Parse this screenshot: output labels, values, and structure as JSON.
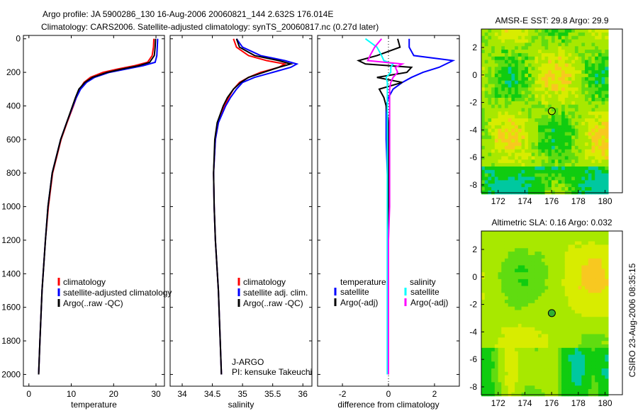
{
  "title_line1": "Argo profile: JA 5900286_130 16-Aug-2006 20060821_144 2.632S 176.014E",
  "title_line2": "Climatology: CARS2006. Satellite-adjusted climatology: synTS_20060817.nc (0.27d later)",
  "side_label": "CSIRO 23-Aug-2006 08:35:15",
  "colors": {
    "climatology": "#ff0000",
    "satellite": "#0000ff",
    "argo": "#000000",
    "sal_satellite": "#00ffff",
    "sal_argo": "#ff00ff"
  },
  "chart_data": [
    {
      "type": "line",
      "xlabel": "temperature",
      "xlim": [
        -1.3,
        32
      ],
      "ylim": [
        2070,
        -20
      ],
      "xticks": [
        0,
        10,
        20,
        30
      ],
      "yticks": [
        0,
        200,
        400,
        600,
        800,
        1000,
        1200,
        1400,
        1600,
        1800,
        2000
      ],
      "legend": [
        "climatology",
        "satellite-adjusted climatology",
        "Argo(..raw -QC)"
      ],
      "legend_placement": "lower-left",
      "depth": [
        0,
        50,
        100,
        140,
        160,
        180,
        200,
        230,
        260,
        300,
        350,
        400,
        500,
        600,
        800,
        1000,
        1200,
        1500,
        1800,
        2000
      ],
      "series": [
        {
          "name": "climatology",
          "color": "#ff0000",
          "values": [
            29.5,
            29.4,
            29.1,
            28.0,
            25,
            21,
            17.5,
            14.5,
            13,
            12,
            11.2,
            10.5,
            9,
            7.6,
            5.6,
            4.6,
            3.9,
            3.1,
            2.6,
            2.3
          ]
        },
        {
          "name": "satellite-adjusted climatology",
          "color": "#0000ff",
          "values": [
            30.4,
            30.3,
            30.2,
            29.8,
            27,
            23,
            19,
            15.5,
            13.6,
            12.2,
            11.2,
            10.4,
            8.9,
            7.5,
            5.5,
            4.5,
            3.9,
            3.1,
            2.6,
            2.3
          ]
        },
        {
          "name": "Argo(..raw -QC)",
          "color": "#000000",
          "values": [
            29.9,
            29.8,
            29.6,
            28.5,
            26,
            22,
            18.5,
            15,
            13.2,
            11.8,
            11,
            10.3,
            8.9,
            7.5,
            5.5,
            4.5,
            3.9,
            3.1,
            2.6,
            2.3
          ]
        }
      ]
    },
    {
      "type": "line",
      "xlabel": "salinity",
      "xlim": [
        33.8,
        36.15
      ],
      "ylim": [
        2070,
        -20
      ],
      "xticks": [
        34,
        34.5,
        35,
        35.5,
        36
      ],
      "legend": [
        "climatology",
        "satellite adj. clim.",
        "Argo(..raw -QC)"
      ],
      "legend_placement": "lower-left",
      "annotation": [
        "J-ARGO",
        "PI: kensuke Takeuchi"
      ],
      "depth": [
        0,
        50,
        100,
        130,
        150,
        170,
        200,
        230,
        260,
        300,
        350,
        400,
        500,
        600,
        800,
        1000,
        1200,
        1500,
        1800,
        2000
      ],
      "series": [
        {
          "name": "climatology",
          "color": "#ff0000",
          "values": [
            34.85,
            34.9,
            35.1,
            35.4,
            35.7,
            35.6,
            35.3,
            35.1,
            34.95,
            34.85,
            34.77,
            34.7,
            34.6,
            34.55,
            34.52,
            34.53,
            34.55,
            34.6,
            34.63,
            34.65
          ]
        },
        {
          "name": "satellite adj. clim.",
          "color": "#0000ff",
          "values": [
            34.9,
            35.0,
            35.3,
            35.7,
            35.9,
            35.8,
            35.5,
            35.2,
            35.0,
            34.9,
            34.8,
            34.72,
            34.6,
            34.55,
            34.52,
            34.53,
            34.55,
            34.6,
            34.63,
            34.65
          ]
        },
        {
          "name": "Argo(..raw -QC)",
          "color": "#000000",
          "values": [
            34.9,
            34.95,
            35.2,
            35.6,
            35.8,
            35.6,
            35.35,
            35.1,
            34.97,
            34.85,
            34.75,
            34.68,
            34.58,
            34.54,
            34.52,
            34.53,
            34.55,
            34.6,
            34.63,
            34.65
          ]
        }
      ]
    },
    {
      "type": "line",
      "xlabel": "difference from climatology",
      "xlim": [
        -3.08,
        3.08
      ],
      "ylim": [
        2070,
        -20
      ],
      "xticks": [
        -2,
        0,
        2
      ],
      "legend": [
        "temperature",
        "satellite",
        "Argo(-adj)",
        "salinity",
        "satellite",
        "Argo(-adj)"
      ],
      "legend_placement": "lower-center",
      "depth": [
        0,
        50,
        100,
        130,
        150,
        170,
        200,
        230,
        260,
        300,
        350,
        400,
        500,
        600,
        800,
        1000,
        1200,
        1500,
        1800,
        2000
      ],
      "series": [
        {
          "name": "temperature satellite",
          "color": "#0000ff",
          "values": [
            0.9,
            0.9,
            1.1,
            2.8,
            2.5,
            2.2,
            1.5,
            1.0,
            0.6,
            0.2,
            0,
            -0.1,
            -0.1,
            -0.1,
            -0.05,
            0,
            0,
            0,
            0,
            0
          ]
        },
        {
          "name": "temperature Argo(-adj)",
          "color": "#000000",
          "values": [
            0.4,
            0.5,
            -0.5,
            -1.3,
            -1.0,
            1.0,
            0.8,
            -0.5,
            0.6,
            -0.4,
            -0.2,
            -0.1,
            0,
            0,
            0,
            0,
            0,
            0,
            0,
            0
          ]
        },
        {
          "name": "salinity satellite",
          "color": "#00ffff",
          "values": [
            -1.0,
            -0.5,
            -0.3,
            -0.2,
            0.2,
            0.1,
            0.1,
            -0.1,
            -0.05,
            -0.05,
            -0.05,
            -0.05,
            -0.05,
            -0.05,
            -0.05,
            -0.05,
            -0.05,
            -0.05,
            -0.05,
            -0.05
          ]
        },
        {
          "name": "salinity Argo(-adj)",
          "color": "#ff00ff",
          "values": [
            -0.3,
            -0.6,
            -0.8,
            -0.9,
            0.6,
            0.3,
            0.4,
            0.2,
            0.1,
            0.05,
            0.05,
            0.05,
            0.05,
            0.05,
            0.05,
            0.05,
            0,
            0,
            0,
            0
          ]
        }
      ]
    }
  ],
  "maps": [
    {
      "title": "AMSR-E SST: 29.8 Argo: 29.9",
      "xticks": [
        172,
        174,
        176,
        178,
        180
      ],
      "yticks": [
        2,
        0,
        -2,
        -4,
        -6,
        -8
      ],
      "lonlim": [
        170.74,
        181.3
      ],
      "latlim": [
        -8.57,
        3.34
      ],
      "float": [
        176.014,
        -2.632
      ]
    },
    {
      "title": "Altimetric SLA: 0.16 Argo: 0.032",
      "xticks": [
        172,
        174,
        176,
        178,
        180
      ],
      "yticks": [
        2,
        0,
        -2,
        -4,
        -6,
        -8
      ],
      "lonlim": [
        170.74,
        181.3
      ],
      "latlim": [
        -8.57,
        3.34
      ],
      "float": [
        176.014,
        -2.632
      ]
    }
  ]
}
